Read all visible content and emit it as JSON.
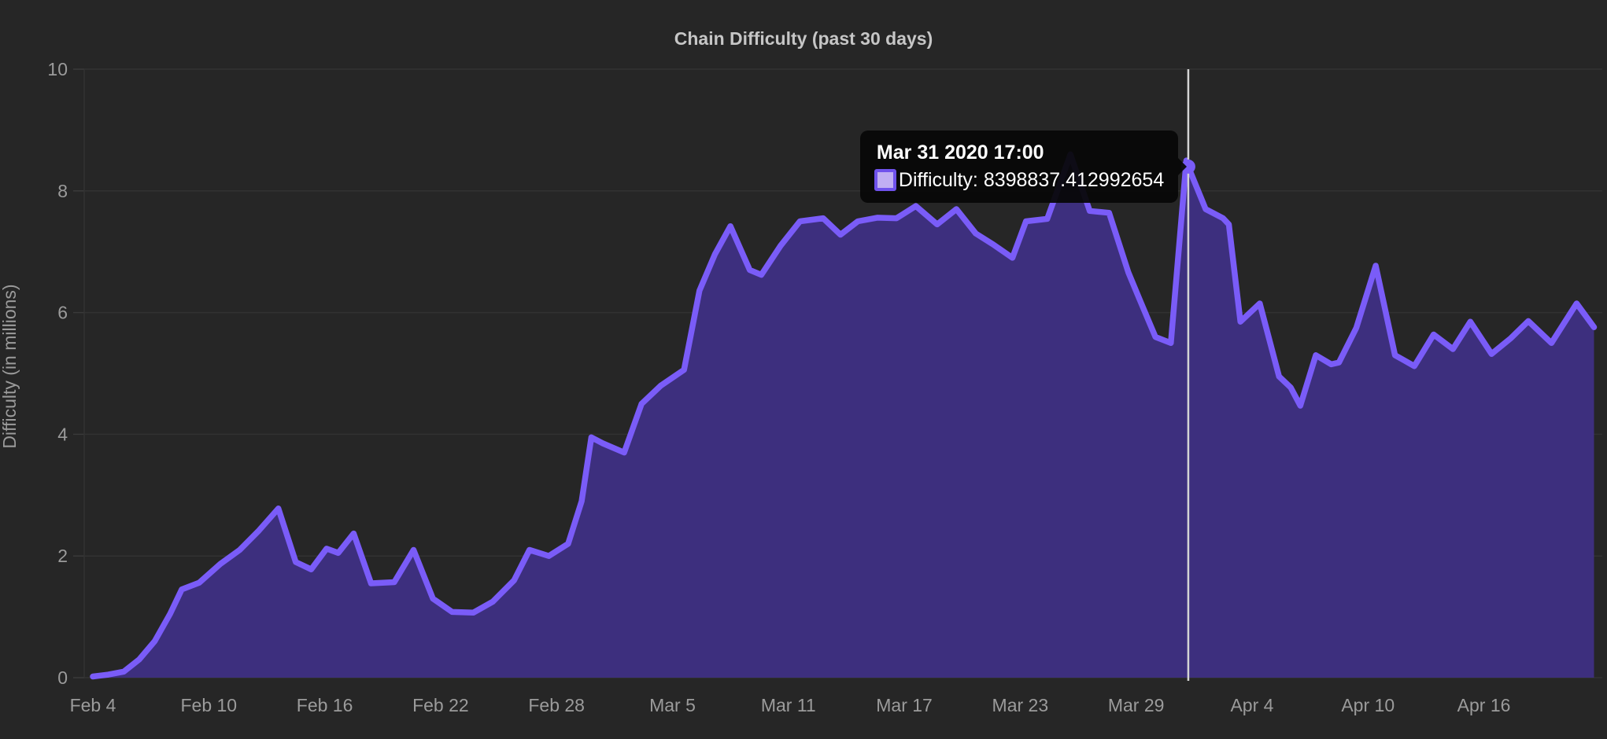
{
  "chart": {
    "title": "Chain Difficulty (past 30 days)",
    "y_axis_title": "Difficulty (in millions)"
  },
  "tooltip": {
    "title": "Mar 31 2020 17:00",
    "text": "Difficulty: 8398837.412992654",
    "series_label": "Difficulty",
    "value": "8398837.412992654"
  },
  "colors": {
    "background": "#262626",
    "line": "#7a5cf8",
    "area_fill": "#3d2f7e",
    "grid": "#323232",
    "axis_text": "#9b9b9b",
    "title_text": "#c6c6c6",
    "tracker": "#d4d4d4",
    "tooltip_bg": "#070707",
    "tooltip_text": "#ffffff",
    "swatch_fill": "#c0aef3",
    "swatch_border": "#6f52ec"
  },
  "chart_data": {
    "type": "area",
    "title": "Chain Difficulty (past 30 days)",
    "xlabel": "",
    "ylabel": "Difficulty (in millions)",
    "ylim": [
      0,
      10
    ],
    "y_ticks": [
      0,
      2,
      4,
      6,
      8,
      10
    ],
    "grid": "horizontal",
    "legend_position": "none",
    "x_unit": "days since Feb 4 2020 00:00",
    "x_ticks": [
      {
        "day": 0,
        "label": "Feb 4"
      },
      {
        "day": 6,
        "label": "Feb 10"
      },
      {
        "day": 12,
        "label": "Feb 16"
      },
      {
        "day": 18,
        "label": "Feb 22"
      },
      {
        "day": 24,
        "label": "Feb 28"
      },
      {
        "day": 30,
        "label": "Mar 5"
      },
      {
        "day": 36,
        "label": "Mar 11"
      },
      {
        "day": 42,
        "label": "Mar 17"
      },
      {
        "day": 48,
        "label": "Mar 23"
      },
      {
        "day": 54,
        "label": "Mar 29"
      },
      {
        "day": 60,
        "label": "Apr 4"
      },
      {
        "day": 66,
        "label": "Apr 10"
      },
      {
        "day": 72,
        "label": "Apr 16"
      }
    ],
    "series": [
      {
        "name": "Difficulty",
        "points": [
          [
            0,
            0.02
          ],
          [
            0.8,
            0.05
          ],
          [
            1.6,
            0.1
          ],
          [
            2.4,
            0.3
          ],
          [
            3.2,
            0.6
          ],
          [
            4,
            1.05
          ],
          [
            4.6,
            1.45
          ],
          [
            5.5,
            1.56
          ],
          [
            6.6,
            1.87
          ],
          [
            7.6,
            2.1
          ],
          [
            8.6,
            2.42
          ],
          [
            9.6,
            2.78
          ],
          [
            10.5,
            1.9
          ],
          [
            11.3,
            1.78
          ],
          [
            12.1,
            2.12
          ],
          [
            12.7,
            2.05
          ],
          [
            13.5,
            2.37
          ],
          [
            14.4,
            1.55
          ],
          [
            15.6,
            1.57
          ],
          [
            16.6,
            2.1
          ],
          [
            17.6,
            1.3
          ],
          [
            18.6,
            1.08
          ],
          [
            19.7,
            1.07
          ],
          [
            20.7,
            1.25
          ],
          [
            21.8,
            1.6
          ],
          [
            22.6,
            2.1
          ],
          [
            23.6,
            2.0
          ],
          [
            24.6,
            2.2
          ],
          [
            25.3,
            2.9
          ],
          [
            25.8,
            3.95
          ],
          [
            26.4,
            3.85
          ],
          [
            27.5,
            3.7
          ],
          [
            28.4,
            4.5
          ],
          [
            29.4,
            4.8
          ],
          [
            30.6,
            5.06
          ],
          [
            31.4,
            6.36
          ],
          [
            32.2,
            6.96
          ],
          [
            33,
            7.42
          ],
          [
            34,
            6.7
          ],
          [
            34.6,
            6.62
          ],
          [
            35.6,
            7.1
          ],
          [
            36.6,
            7.5
          ],
          [
            37.8,
            7.55
          ],
          [
            38.7,
            7.28
          ],
          [
            39.6,
            7.5
          ],
          [
            40.6,
            7.56
          ],
          [
            41.6,
            7.55
          ],
          [
            42.6,
            7.75
          ],
          [
            43.7,
            7.45
          ],
          [
            44.7,
            7.7
          ],
          [
            45.7,
            7.3
          ],
          [
            46.6,
            7.12
          ],
          [
            47.6,
            6.9
          ],
          [
            48.3,
            7.5
          ],
          [
            49.4,
            7.54
          ],
          [
            50.6,
            8.6
          ],
          [
            51.6,
            7.67
          ],
          [
            52.6,
            7.64
          ],
          [
            53.6,
            6.66
          ],
          [
            54.2,
            6.2
          ],
          [
            55,
            5.6
          ],
          [
            55.8,
            5.5
          ],
          [
            56.6,
            8.5
          ],
          [
            56.7,
            8.398837412992654
          ],
          [
            57.6,
            7.7
          ],
          [
            58.5,
            7.55
          ],
          [
            58.8,
            7.45
          ],
          [
            59.4,
            5.85
          ],
          [
            60.4,
            6.15
          ],
          [
            61.4,
            4.95
          ],
          [
            62,
            4.77
          ],
          [
            62.5,
            4.47
          ],
          [
            63.3,
            5.3
          ],
          [
            64.1,
            5.15
          ],
          [
            64.5,
            5.18
          ],
          [
            65.4,
            5.75
          ],
          [
            66.4,
            6.77
          ],
          [
            67.4,
            5.3
          ],
          [
            68.4,
            5.12
          ],
          [
            69.4,
            5.64
          ],
          [
            70.4,
            5.4
          ],
          [
            71.3,
            5.85
          ],
          [
            72.4,
            5.32
          ],
          [
            73.4,
            5.58
          ],
          [
            74.3,
            5.86
          ],
          [
            75.5,
            5.5
          ],
          [
            76.8,
            6.15
          ],
          [
            77.7,
            5.76
          ]
        ]
      }
    ],
    "hover_point": {
      "day": 56.7,
      "value_millions": 8.398837412992654,
      "date": "Mar 31 2020 17:00",
      "difficulty_raw": "8398837.412992654"
    }
  }
}
